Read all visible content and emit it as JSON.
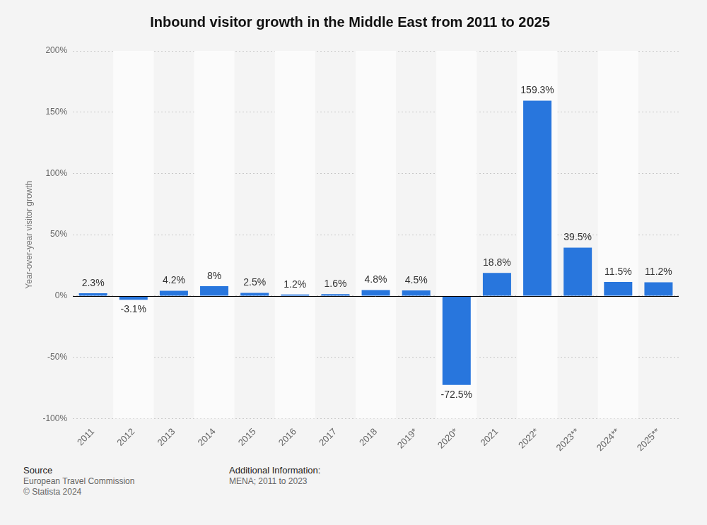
{
  "chart_data": {
    "type": "bar",
    "title": "Inbound visitor growth in the Middle East from 2011 to 2025",
    "y_label": "Year-over-year visitor growth",
    "categories": [
      "2011",
      "2012",
      "2013",
      "2014",
      "2015",
      "2016",
      "2017",
      "2018",
      "2019*",
      "2020*",
      "2021",
      "2022*",
      "2023**",
      "2024**",
      "2025**"
    ],
    "values": [
      2.3,
      -3.1,
      4.2,
      8,
      2.5,
      1.2,
      1.6,
      4.8,
      4.5,
      -72.5,
      18.8,
      159.3,
      39.5,
      11.5,
      11.2
    ],
    "value_labels": [
      "2.3%",
      "-3.1%",
      "4.2%",
      "8%",
      "2.5%",
      "1.2%",
      "1.6%",
      "4.8%",
      "4.5%",
      "-72.5%",
      "18.8%",
      "159.3%",
      "39.5%",
      "11.5%",
      "11.2%"
    ],
    "data_labels": true,
    "color": "#2876dd",
    "ylim": [
      -100,
      200
    ],
    "yticks": [
      {
        "value": -100,
        "label": "-100%"
      },
      {
        "value": -50,
        "label": "-50%"
      },
      {
        "value": 0,
        "label": "0%"
      },
      {
        "value": 50,
        "label": "50%"
      },
      {
        "value": 100,
        "label": "100%"
      },
      {
        "value": 150,
        "label": "150%"
      },
      {
        "value": 200,
        "label": "200%"
      }
    ],
    "grid": true
  },
  "footer": {
    "source_heading": "Source",
    "source": [
      "European Travel Commission",
      "© Statista 2024"
    ],
    "info_heading": "Additional Information:",
    "info": [
      "MENA; 2011 to 2023"
    ]
  }
}
